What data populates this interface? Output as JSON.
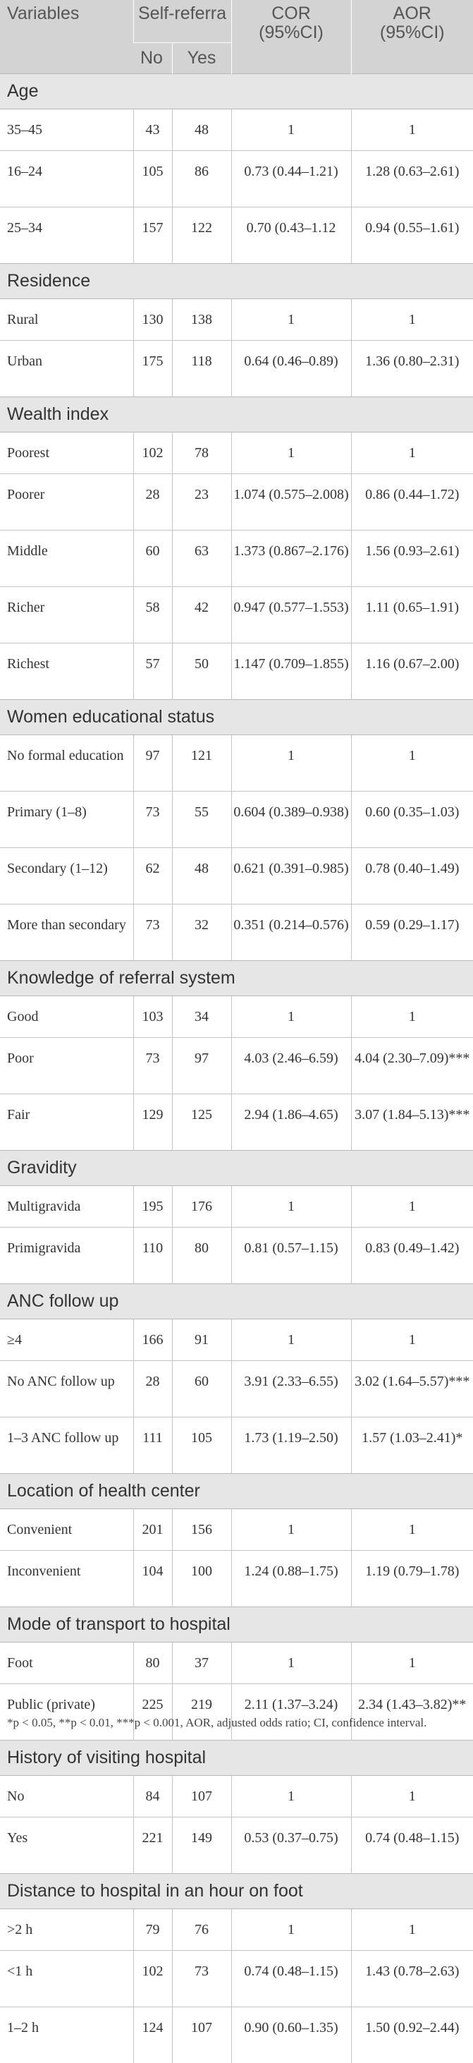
{
  "headers": {
    "variables": "Variables",
    "self_referral": "Self-referra",
    "no": "No",
    "yes": "Yes",
    "cor_line1": "COR",
    "cor_line2": "(95%CI)",
    "aor_line1": "AOR",
    "aor_line2": "(95%CI)"
  },
  "groups": [
    {
      "title": "Age",
      "rows": [
        {
          "label": "35–45",
          "no": "43",
          "yes": "48",
          "cor": "1",
          "aor": "1"
        },
        {
          "label": "16–24",
          "no": "105",
          "yes": "86",
          "cor": "0.73 (0.44–1.21)",
          "aor": "1.28 (0.63–2.61)"
        },
        {
          "label": "25–34",
          "no": "157",
          "yes": "122",
          "cor": "0.70 (0.43–1.12",
          "aor": "0.94 (0.55–1.61)"
        }
      ]
    },
    {
      "title": "Residence",
      "rows": [
        {
          "label": "Rural",
          "no": "130",
          "yes": "138",
          "cor": "1",
          "aor": "1"
        },
        {
          "label": "Urban",
          "no": "175",
          "yes": "118",
          "cor": "0.64 (0.46–0.89)",
          "aor": "1.36 (0.80–2.31)"
        }
      ]
    },
    {
      "title": "Wealth index",
      "rows": [
        {
          "label": "Poorest",
          "no": "102",
          "yes": "78",
          "cor": "1",
          "aor": "1"
        },
        {
          "label": "Poorer",
          "no": "28",
          "yes": "23",
          "cor": "1.074 (0.575–2.008)",
          "aor": "0.86 (0.44–1.72)"
        },
        {
          "label": "Middle",
          "no": "60",
          "yes": "63",
          "cor": "1.373 (0.867–2.176)",
          "aor": "1.56 (0.93–2.61)"
        },
        {
          "label": "Richer",
          "no": "58",
          "yes": "42",
          "cor": "0.947 (0.577–1.553)",
          "aor": "1.11 (0.65–1.91)"
        },
        {
          "label": "Richest",
          "no": "57",
          "yes": "50",
          "cor": "1.147 (0.709–1.855)",
          "aor": "1.16 (0.67–2.00)"
        }
      ]
    },
    {
      "title": "Women educational status",
      "rows": [
        {
          "label": "No formal education",
          "no": "97",
          "yes": "121",
          "cor": "1",
          "aor": "1"
        },
        {
          "label": "Primary (1–8)",
          "no": "73",
          "yes": "55",
          "cor": "0.604 (0.389–0.938)",
          "aor": "0.60 (0.35–1.03)"
        },
        {
          "label": "Secondary (1–12)",
          "no": "62",
          "yes": "48",
          "cor": "0.621 (0.391–0.985)",
          "aor": "0.78 (0.40–1.49)"
        },
        {
          "label": "More than secondary",
          "no": "73",
          "yes": "32",
          "cor": "0.351 (0.214–0.576)",
          "aor": "0.59 (0.29–1.17)"
        }
      ]
    },
    {
      "title": "Knowledge of referral system",
      "rows": [
        {
          "label": "Good",
          "no": "103",
          "yes": "34",
          "cor": "1",
          "aor": "1"
        },
        {
          "label": "Poor",
          "no": "73",
          "yes": "97",
          "cor": "4.03 (2.46–6.59)",
          "aor": "4.04 (2.30–7.09)***"
        },
        {
          "label": "Fair",
          "no": "129",
          "yes": "125",
          "cor": "2.94 (1.86–4.65)",
          "aor": "3.07 (1.84–5.13)***"
        }
      ]
    },
    {
      "title": "Gravidity",
      "rows": [
        {
          "label": "Multigravida",
          "no": "195",
          "yes": "176",
          "cor": "1",
          "aor": "1"
        },
        {
          "label": "Primigravida",
          "no": "110",
          "yes": "80",
          "cor": "0.81 (0.57–1.15)",
          "aor": "0.83 (0.49–1.42)"
        }
      ]
    },
    {
      "title": "ANC follow up",
      "rows": [
        {
          "label": "≥4",
          "no": "166",
          "yes": "91",
          "cor": "1",
          "aor": "1"
        },
        {
          "label": "No ANC follow up",
          "no": "28",
          "yes": "60",
          "cor": "3.91 (2.33–6.55)",
          "aor": "3.02 (1.64–5.57)***"
        },
        {
          "label": "1–3 ANC follow up",
          "no": "111",
          "yes": "105",
          "cor": "1.73 (1.19–2.50)",
          "aor": "1.57 (1.03–2.41)*"
        }
      ]
    },
    {
      "title": "Location of health center",
      "rows": [
        {
          "label": "Convenient",
          "no": "201",
          "yes": "156",
          "cor": "1",
          "aor": "1"
        },
        {
          "label": "Inconvenient",
          "no": "104",
          "yes": "100",
          "cor": "1.24 (0.88–1.75)",
          "aor": "1.19 (0.79–1.78)"
        }
      ]
    },
    {
      "title": "Mode of transport to hospital",
      "rows": [
        {
          "label": "Foot",
          "no": "80",
          "yes": "37",
          "cor": "1",
          "aor": "1"
        },
        {
          "label": "Public (private)",
          "no": "225",
          "yes": "219",
          "cor": "2.11 (1.37–3.24)",
          "aor": "2.34 (1.43–3.82)**"
        }
      ]
    },
    {
      "title": "History of visiting hospital",
      "rows": [
        {
          "label": "No",
          "no": "84",
          "yes": "107",
          "cor": "1",
          "aor": "1"
        },
        {
          "label": "Yes",
          "no": "221",
          "yes": "149",
          "cor": "0.53 (0.37–0.75)",
          "aor": "0.74 (0.48–1.15)"
        }
      ]
    },
    {
      "title": "Distance to hospital in an hour on foot",
      "rows": [
        {
          "label": ">2 h",
          "no": "79",
          "yes": "76",
          "cor": "1",
          "aor": "1"
        },
        {
          "label": "<1 h",
          "no": "102",
          "yes": "73",
          "cor": "0.74 (0.48–1.15)",
          "aor": "1.43 (0.78–2.63)"
        },
        {
          "label": "1–2 h",
          "no": "124",
          "yes": "107",
          "cor": "0.90 (0.60–1.35)",
          "aor": "1.50 (0.92–2.44)"
        }
      ]
    }
  ],
  "footnote": "*p < 0.05, **p < 0.01, ***p < 0.001, AOR, adjusted odds ratio; CI, confidence interval."
}
